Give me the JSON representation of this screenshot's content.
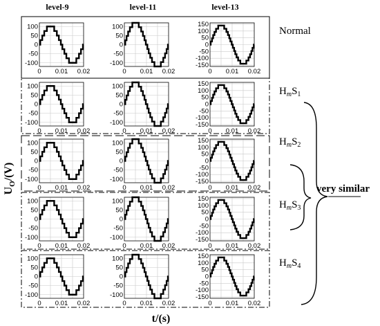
{
  "columns": [
    "level-9",
    "level-11",
    "level-13"
  ],
  "rows": [
    {
      "label": "Normal",
      "sub": ""
    },
    {
      "label": "HmS1",
      "base": "H",
      "italic": "m",
      "rest": "S",
      "sub": "1"
    },
    {
      "label": "HmS2",
      "base": "H",
      "italic": "m",
      "rest": "S",
      "sub": "2"
    },
    {
      "label": "HmS3",
      "base": "H",
      "italic": "m",
      "rest": "S",
      "sub": "3"
    },
    {
      "label": "HmS4",
      "base": "H",
      "italic": "m",
      "rest": "S",
      "sub": "4"
    }
  ],
  "y_axis_label": {
    "main": "U",
    "sub": "O",
    "rest": "/(V)"
  },
  "x_axis_label": "t/(s)",
  "annotation": "very similar",
  "x_ticks": [
    "0",
    "0.01",
    "0.02"
  ],
  "chart_data": [
    {
      "row": 0,
      "col": 0,
      "type": "line",
      "levels": 9,
      "amplitude": 100,
      "x_range": [
        0,
        0.02
      ],
      "yticks": [
        100,
        50,
        0,
        -50,
        -100
      ]
    },
    {
      "row": 0,
      "col": 1,
      "type": "line",
      "levels": 11,
      "amplitude": 120,
      "x_range": [
        0,
        0.02
      ],
      "yticks": [
        100,
        50,
        0,
        -50,
        -100
      ]
    },
    {
      "row": 0,
      "col": 2,
      "type": "line",
      "levels": 13,
      "amplitude": 140,
      "x_range": [
        0,
        0.02
      ],
      "yticks": [
        150,
        100,
        50,
        0,
        -50,
        -100,
        -150
      ]
    },
    {
      "row": 1,
      "col": 0,
      "type": "line",
      "levels": 9,
      "amplitude": 100,
      "x_range": [
        0,
        0.02
      ],
      "yticks": [
        100,
        50,
        0,
        -50,
        -100
      ]
    },
    {
      "row": 1,
      "col": 1,
      "type": "line",
      "levels": 11,
      "amplitude": 120,
      "x_range": [
        0,
        0.02
      ],
      "yticks": [
        100,
        50,
        0,
        -50,
        -100
      ]
    },
    {
      "row": 1,
      "col": 2,
      "type": "line",
      "levels": 13,
      "amplitude": 140,
      "x_range": [
        0,
        0.02
      ],
      "yticks": [
        150,
        100,
        50,
        0,
        -50,
        -100,
        -150
      ]
    },
    {
      "row": 2,
      "col": 0,
      "type": "line",
      "levels": 9,
      "amplitude": 100,
      "x_range": [
        0,
        0.02
      ],
      "yticks": [
        100,
        50,
        0,
        -50,
        -100
      ]
    },
    {
      "row": 2,
      "col": 1,
      "type": "line",
      "levels": 11,
      "amplitude": 120,
      "x_range": [
        0,
        0.02
      ],
      "yticks": [
        100,
        50,
        0,
        -50,
        -100
      ]
    },
    {
      "row": 2,
      "col": 2,
      "type": "line",
      "levels": 13,
      "amplitude": 140,
      "x_range": [
        0,
        0.02
      ],
      "yticks": [
        150,
        100,
        50,
        0,
        -50,
        -100,
        -150
      ]
    },
    {
      "row": 3,
      "col": 0,
      "type": "line",
      "levels": 9,
      "amplitude": 100,
      "x_range": [
        0,
        0.02
      ],
      "yticks": [
        100,
        50,
        0,
        -50,
        -100
      ]
    },
    {
      "row": 3,
      "col": 1,
      "type": "line",
      "levels": 11,
      "amplitude": 120,
      "x_range": [
        0,
        0.02
      ],
      "yticks": [
        100,
        50,
        0,
        -50,
        -100
      ]
    },
    {
      "row": 3,
      "col": 2,
      "type": "line",
      "levels": 13,
      "amplitude": 140,
      "x_range": [
        0,
        0.02
      ],
      "yticks": [
        150,
        100,
        50,
        0,
        -50,
        -100,
        -150
      ]
    },
    {
      "row": 4,
      "col": 0,
      "type": "line",
      "levels": 9,
      "amplitude": 100,
      "x_range": [
        0,
        0.02
      ],
      "yticks": [
        100,
        50,
        0,
        -50,
        -100
      ]
    },
    {
      "row": 4,
      "col": 1,
      "type": "line",
      "levels": 11,
      "amplitude": 120,
      "x_range": [
        0,
        0.02
      ],
      "yticks": [
        100,
        50,
        0,
        -50,
        -100
      ]
    },
    {
      "row": 4,
      "col": 2,
      "type": "line",
      "levels": 13,
      "amplitude": 140,
      "x_range": [
        0,
        0.02
      ],
      "yticks": [
        150,
        100,
        50,
        0,
        -50,
        -100,
        -150
      ]
    }
  ]
}
